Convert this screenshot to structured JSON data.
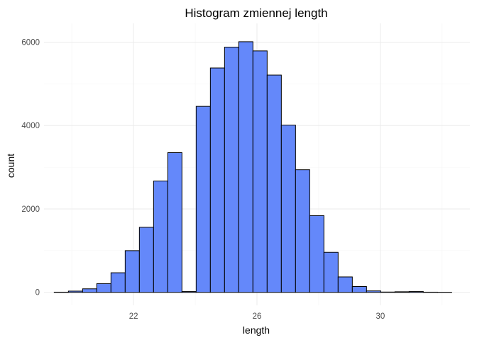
{
  "chart_data": {
    "type": "bar",
    "title": "Histogram zmiennej  length",
    "xlabel": "length",
    "ylabel": "count",
    "xlim": [
      19.1,
      32.9
    ],
    "ylim": [
      -310,
      6450
    ],
    "x_ticks": [
      22,
      26,
      30
    ],
    "y_ticks": [
      0,
      2000,
      4000,
      6000
    ],
    "grid": true,
    "legend": "none",
    "bar_color": "#6488fa",
    "bin_width": 0.46,
    "bins": [
      {
        "x": 19.66,
        "count": 5
      },
      {
        "x": 20.12,
        "count": 30
      },
      {
        "x": 20.58,
        "count": 85
      },
      {
        "x": 21.04,
        "count": 210
      },
      {
        "x": 21.5,
        "count": 470
      },
      {
        "x": 21.96,
        "count": 1000
      },
      {
        "x": 22.42,
        "count": 1560
      },
      {
        "x": 22.88,
        "count": 2670
      },
      {
        "x": 23.34,
        "count": 3350
      },
      {
        "x": 23.8,
        "count": 20
      },
      {
        "x": 24.26,
        "count": 4460
      },
      {
        "x": 24.72,
        "count": 5380
      },
      {
        "x": 25.18,
        "count": 5880
      },
      {
        "x": 25.64,
        "count": 6010
      },
      {
        "x": 26.1,
        "count": 5790
      },
      {
        "x": 26.56,
        "count": 5210
      },
      {
        "x": 27.02,
        "count": 4010
      },
      {
        "x": 27.48,
        "count": 2940
      },
      {
        "x": 27.94,
        "count": 1840
      },
      {
        "x": 28.4,
        "count": 960
      },
      {
        "x": 28.86,
        "count": 370
      },
      {
        "x": 29.32,
        "count": 140
      },
      {
        "x": 29.78,
        "count": 35
      },
      {
        "x": 30.24,
        "count": 8
      },
      {
        "x": 30.7,
        "count": 15
      },
      {
        "x": 31.16,
        "count": 20
      },
      {
        "x": 31.62,
        "count": 5
      },
      {
        "x": 32.08,
        "count": 3
      }
    ]
  }
}
